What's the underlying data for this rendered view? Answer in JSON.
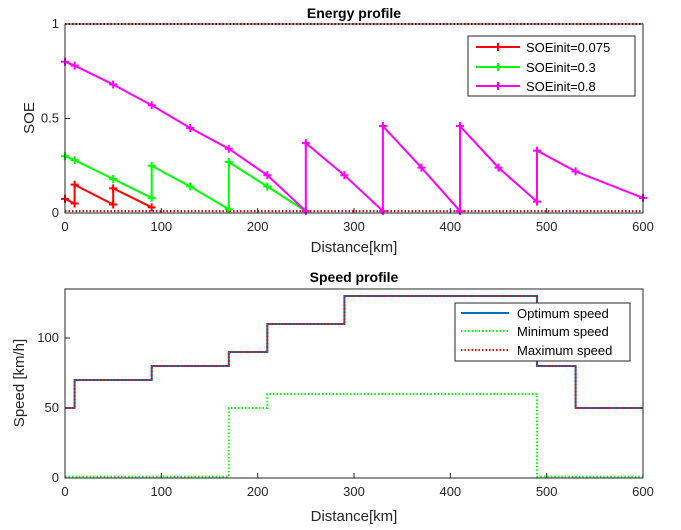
{
  "chart_data": [
    {
      "type": "line",
      "title": "Energy profile",
      "xlabel": "Distance[km]",
      "ylabel": "SOE",
      "xlim": [
        0,
        600
      ],
      "ylim": [
        0,
        1
      ],
      "xticks": [
        0,
        100,
        200,
        300,
        400,
        500,
        600
      ],
      "yticks": [
        0,
        0.5,
        1
      ],
      "ytick_labels": [
        "0",
        "0.5",
        "1"
      ],
      "grid": false,
      "legend_position": "top-right",
      "reference_lines": [
        {
          "y": 1,
          "style": "dotted",
          "color": "#cc0000"
        },
        {
          "y": 0.01,
          "style": "dotted",
          "color": "#cc0000"
        }
      ],
      "series": [
        {
          "name": "SOEinit=0.075",
          "color": "#ff0000",
          "marker": "+",
          "points": [
            [
              0,
              0.075
            ],
            [
              10,
              0.05
            ],
            [
              10,
              0.15
            ],
            [
              50,
              0.045
            ],
            [
              50,
              0.13
            ],
            [
              90,
              0.03
            ]
          ]
        },
        {
          "name": "SOEinit=0.3",
          "color": "#00ff00",
          "marker": "+",
          "points": [
            [
              0,
              0.3
            ],
            [
              10,
              0.28
            ],
            [
              50,
              0.18
            ],
            [
              90,
              0.08
            ],
            [
              90,
              0.25
            ],
            [
              130,
              0.14
            ],
            [
              170,
              0.02
            ],
            [
              170,
              0.27
            ],
            [
              210,
              0.14
            ],
            [
              250,
              0.01
            ]
          ]
        },
        {
          "name": "SOEinit=0.8",
          "color": "#ff00ff",
          "marker": "+",
          "points": [
            [
              0,
              0.8
            ],
            [
              10,
              0.78
            ],
            [
              50,
              0.68
            ],
            [
              90,
              0.57
            ],
            [
              130,
              0.45
            ],
            [
              170,
              0.34
            ],
            [
              210,
              0.2
            ],
            [
              250,
              0.01
            ],
            [
              250,
              0.37
            ],
            [
              290,
              0.2
            ],
            [
              330,
              0.01
            ],
            [
              330,
              0.46
            ],
            [
              370,
              0.24
            ],
            [
              410,
              0.01
            ],
            [
              410,
              0.46
            ],
            [
              450,
              0.24
            ],
            [
              490,
              0.06
            ],
            [
              490,
              0.33
            ],
            [
              530,
              0.22
            ],
            [
              600,
              0.08
            ]
          ]
        }
      ]
    },
    {
      "type": "line",
      "title": "Speed profile",
      "xlabel": "Distance[km]",
      "ylabel": "Speed [km/h]",
      "xlim": [
        0,
        600
      ],
      "ylim": [
        0,
        135
      ],
      "xticks": [
        0,
        100,
        200,
        300,
        400,
        500,
        600
      ],
      "yticks": [
        0,
        50,
        100
      ],
      "ytick_labels": [
        "0",
        "50",
        "100"
      ],
      "grid": false,
      "legend_position": "top-right",
      "series": [
        {
          "name": "Optimum speed",
          "color": "#0072bd",
          "style": "solid",
          "points": [
            [
              0,
              50
            ],
            [
              10,
              50
            ],
            [
              10,
              70
            ],
            [
              90,
              70
            ],
            [
              90,
              80
            ],
            [
              170,
              80
            ],
            [
              170,
              90
            ],
            [
              210,
              90
            ],
            [
              210,
              110
            ],
            [
              290,
              110
            ],
            [
              290,
              130
            ],
            [
              450,
              130
            ],
            [
              490,
              130
            ],
            [
              490,
              80
            ],
            [
              530,
              80
            ],
            [
              530,
              50
            ],
            [
              600,
              50
            ]
          ]
        },
        {
          "name": "Minimum speed",
          "color": "#00ff00",
          "style": "dotted",
          "points": [
            [
              0,
              1
            ],
            [
              170,
              1
            ],
            [
              170,
              50
            ],
            [
              210,
              50
            ],
            [
              210,
              60
            ],
            [
              490,
              60
            ],
            [
              490,
              1
            ],
            [
              600,
              1
            ]
          ]
        },
        {
          "name": "Maximum speed",
          "color": "#ff0000",
          "style": "dotted",
          "points": [
            [
              0,
              50
            ],
            [
              10,
              50
            ],
            [
              10,
              70
            ],
            [
              90,
              70
            ],
            [
              90,
              80
            ],
            [
              170,
              80
            ],
            [
              170,
              90
            ],
            [
              210,
              90
            ],
            [
              210,
              110
            ],
            [
              290,
              110
            ],
            [
              290,
              130
            ],
            [
              490,
              130
            ],
            [
              490,
              80
            ],
            [
              530,
              80
            ],
            [
              530,
              50
            ],
            [
              600,
              50
            ]
          ]
        }
      ]
    }
  ]
}
